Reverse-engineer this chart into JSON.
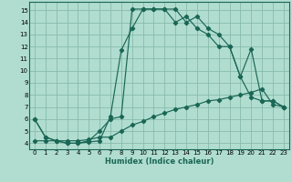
{
  "xlabel": "Humidex (Indice chaleur)",
  "bg_color": "#b0ddd0",
  "grid_color": "#88bbaa",
  "line_color": "#1a6655",
  "xlim": [
    -0.5,
    23.5
  ],
  "ylim": [
    3.5,
    15.7
  ],
  "xticks": [
    0,
    1,
    2,
    3,
    4,
    5,
    6,
    7,
    8,
    9,
    10,
    11,
    12,
    13,
    14,
    15,
    16,
    17,
    18,
    19,
    20,
    21,
    22,
    23
  ],
  "yticks": [
    4,
    5,
    6,
    7,
    8,
    9,
    10,
    11,
    12,
    13,
    14,
    15
  ],
  "line1_x": [
    0,
    1,
    2,
    3,
    4,
    5,
    6,
    7,
    8,
    9,
    10,
    11,
    12,
    13,
    14,
    15,
    16,
    17,
    18,
    19,
    20,
    21,
    22,
    23
  ],
  "line1_y": [
    6,
    4.5,
    4.2,
    4.0,
    4.0,
    4.1,
    4.2,
    6.2,
    11.7,
    13.5,
    15.1,
    15.1,
    15.1,
    15.1,
    14.0,
    14.5,
    13.5,
    13.0,
    12.0,
    9.5,
    7.8,
    7.5,
    7.5,
    7.0
  ],
  "line2_x": [
    0,
    1,
    2,
    3,
    4,
    5,
    6,
    7,
    8,
    9,
    10,
    11,
    12,
    13,
    14,
    15,
    16,
    17,
    18,
    19,
    20,
    21,
    22,
    23
  ],
  "line2_y": [
    6,
    4.5,
    4.2,
    4.0,
    4.0,
    4.2,
    5.0,
    6.0,
    6.2,
    15.1,
    15.1,
    15.1,
    15.1,
    14.0,
    14.5,
    13.5,
    13.0,
    12.0,
    12.0,
    9.5,
    11.8,
    7.5,
    7.5,
    7.0
  ],
  "line3_x": [
    0,
    1,
    2,
    3,
    4,
    5,
    6,
    7,
    8,
    9,
    10,
    11,
    12,
    13,
    14,
    15,
    16,
    17,
    18,
    19,
    20,
    21,
    22,
    23
  ],
  "line3_y": [
    4.2,
    4.2,
    4.2,
    4.2,
    4.2,
    4.3,
    4.5,
    4.5,
    5.0,
    5.5,
    5.8,
    6.2,
    6.5,
    6.8,
    7.0,
    7.2,
    7.5,
    7.6,
    7.8,
    8.0,
    8.2,
    8.5,
    7.2,
    7.0
  ]
}
